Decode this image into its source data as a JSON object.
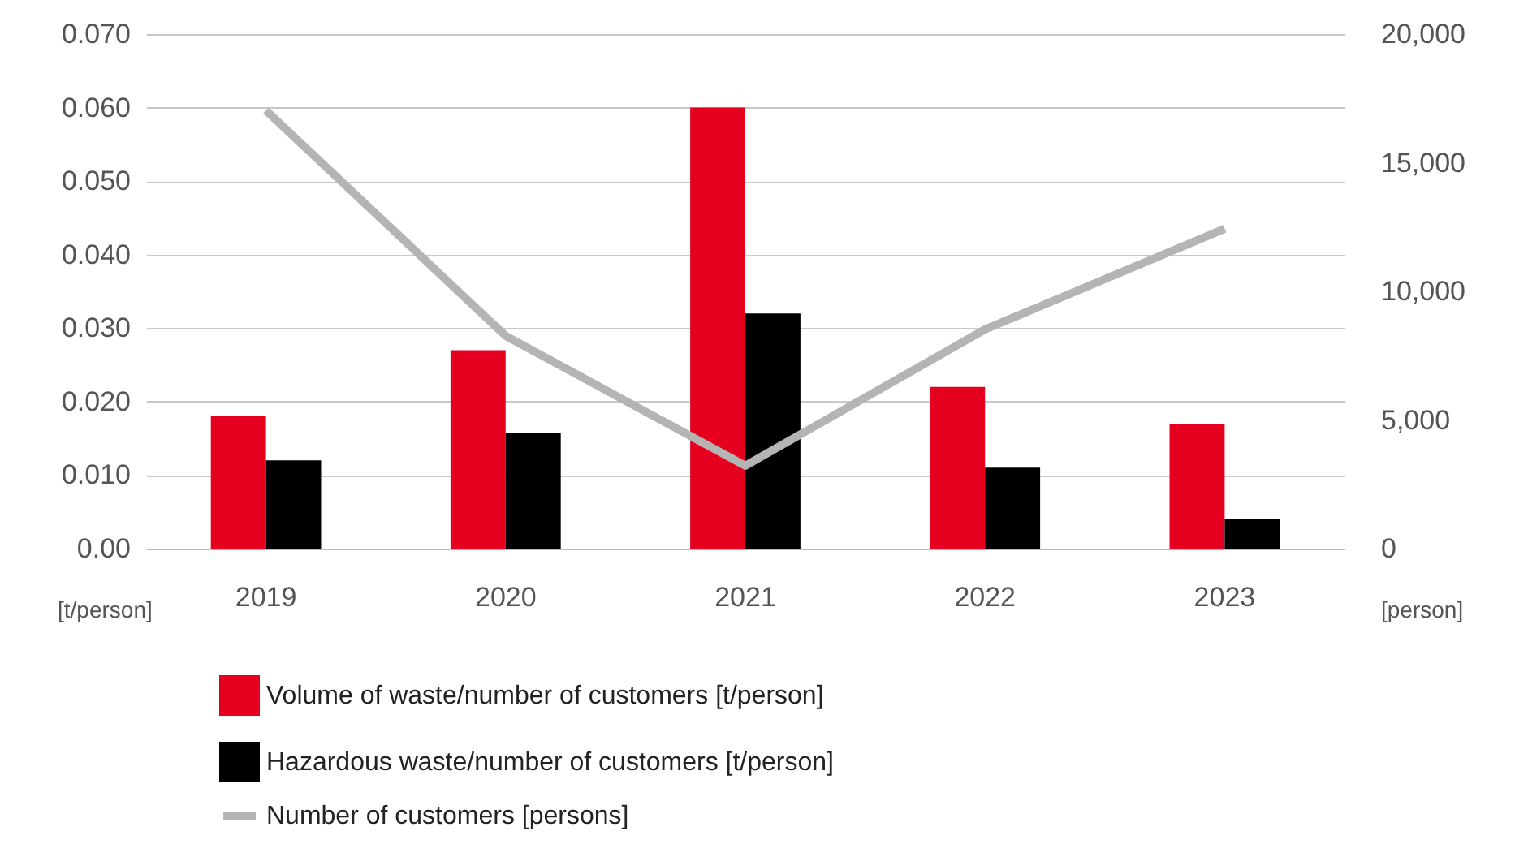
{
  "chart_data": {
    "type": "bar",
    "categories": [
      "2019",
      "2020",
      "2021",
      "2022",
      "2023"
    ],
    "ylabel": "[t/person]",
    "y2label": "[person]",
    "ylim": [
      0,
      0.07
    ],
    "yticks": [
      {
        "value": 0,
        "label": "0.00"
      },
      {
        "value": 0.01,
        "label": "0.010"
      },
      {
        "value": 0.02,
        "label": "0.020"
      },
      {
        "value": 0.03,
        "label": "0.030"
      },
      {
        "value": 0.04,
        "label": "0.040"
      },
      {
        "value": 0.05,
        "label": "0.050"
      },
      {
        "value": 0.06,
        "label": "0.060"
      },
      {
        "value": 0.07,
        "label": "0.070"
      }
    ],
    "y2lim": [
      0,
      20000
    ],
    "y2ticks": [
      {
        "value": 0,
        "label": "0"
      },
      {
        "value": 5000,
        "label": "5,000"
      },
      {
        "value": 10000,
        "label": "10,000"
      },
      {
        "value": 15000,
        "label": "15,000"
      },
      {
        "value": 20000,
        "label": "20,000"
      }
    ],
    "grid": "y",
    "legend": "bottom",
    "series": [
      {
        "name": "Volume of waste/number of customers [t/person]",
        "color": "#e60020",
        "values": [
          0.018,
          0.027,
          0.06,
          0.022,
          0.017
        ]
      },
      {
        "name": "Hazardous waste/number of customers [t/person]",
        "color": "#000000",
        "values": [
          0.012,
          0.0157,
          0.032,
          0.011,
          0.004
        ]
      },
      {
        "name": "Number of customers [persons]",
        "type": "line",
        "axis": "y2",
        "color": "#b4b4b4",
        "values": [
          17030,
          8270,
          3220,
          8520,
          12430
        ]
      }
    ]
  }
}
